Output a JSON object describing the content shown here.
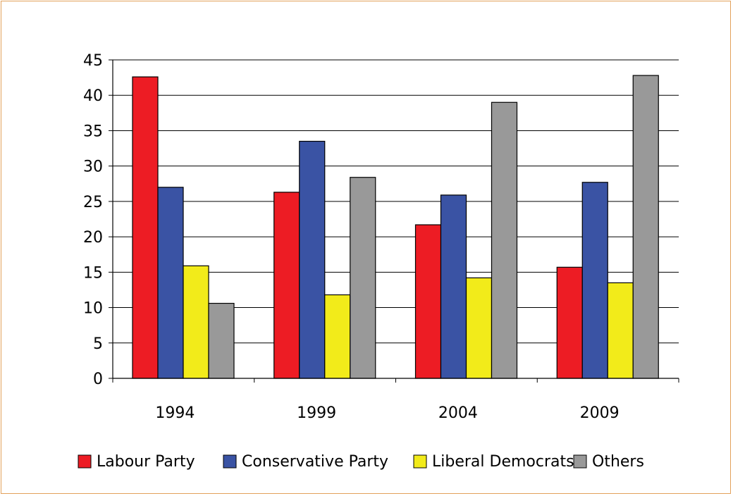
{
  "chart_data": {
    "type": "bar",
    "categories": [
      "1994",
      "1999",
      "2004",
      "2009"
    ],
    "series": [
      {
        "name": "Labour Party",
        "color": "#ed1c24",
        "values": [
          42.6,
          26.3,
          21.7,
          15.7
        ]
      },
      {
        "name": "Conservative Party",
        "color": "#3a53a4",
        "values": [
          27.0,
          33.5,
          25.9,
          27.7
        ]
      },
      {
        "name": "Liberal Democrats",
        "color": "#f2eb1a",
        "values": [
          15.9,
          11.8,
          14.2,
          13.5
        ]
      },
      {
        "name": "Others",
        "color": "#999999",
        "values": [
          10.6,
          28.4,
          39.0,
          42.8
        ]
      }
    ],
    "yticks": [
      "0",
      "5",
      "10",
      "15",
      "20",
      "25",
      "30",
      "35",
      "40",
      "45"
    ],
    "ylim": [
      0,
      45
    ],
    "grid": true,
    "legend_position": "bottom"
  }
}
